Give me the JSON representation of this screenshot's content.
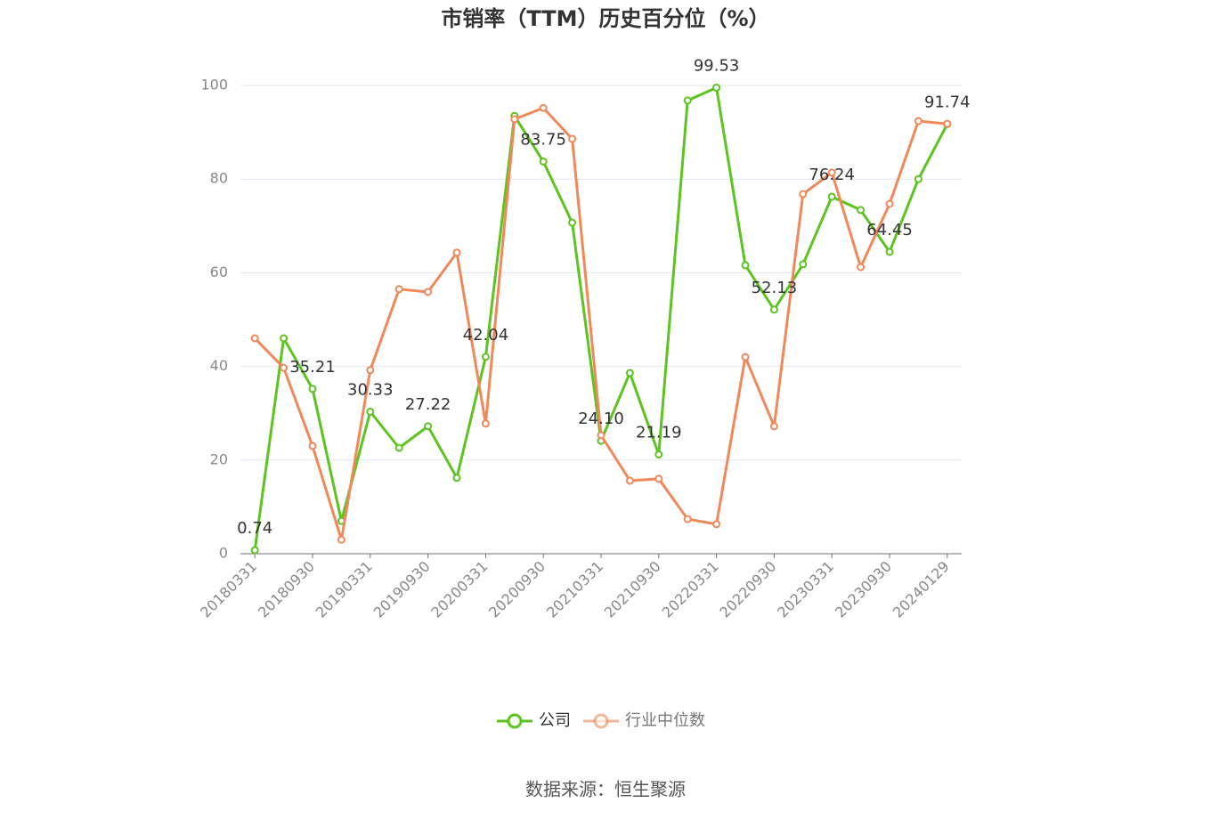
{
  "chart_data": {
    "type": "line",
    "title": "市销率（TTM）历史百分位（%）",
    "source": "数据来源：恒生聚源",
    "categories": [
      "20180331",
      null,
      "20180930",
      null,
      "20190331",
      null,
      "20190930",
      null,
      "20200331",
      null,
      "20200930",
      null,
      "20210331",
      null,
      "20210930",
      null,
      "20220331",
      null,
      "20220930",
      null,
      "20230331",
      null,
      "20230930",
      null,
      "20240129"
    ],
    "series": [
      {
        "name": "公司",
        "color": "#5cc31f",
        "values": [
          0.74,
          46.0,
          35.21,
          7.0,
          30.33,
          22.6,
          27.22,
          16.2,
          42.04,
          93.5,
          83.75,
          70.7,
          24.1,
          38.6,
          21.19,
          96.8,
          99.53,
          61.6,
          52.13,
          61.8,
          76.24,
          73.4,
          64.45,
          80.0,
          91.74
        ],
        "value_labels": [
          "0.74",
          null,
          "35.21",
          null,
          "30.33",
          null,
          "27.22",
          null,
          "42.04",
          null,
          "83.75",
          null,
          "24.10",
          null,
          "21.19",
          null,
          "99.53",
          null,
          "52.13",
          null,
          "76.24",
          null,
          "64.45",
          null,
          "91.74"
        ]
      },
      {
        "name": "行业中位数",
        "color": "#f0885a",
        "values": [
          46.0,
          39.7,
          23.0,
          3.0,
          39.2,
          56.5,
          55.9,
          64.3,
          27.8,
          92.8,
          95.2,
          88.6,
          25.3,
          15.6,
          16.0,
          7.4,
          6.3,
          42.0,
          27.2,
          76.8,
          81.4,
          61.2,
          74.7,
          92.4,
          91.8
        ]
      }
    ],
    "ylim": [
      0,
      100
    ],
    "yticks": [
      0,
      20,
      40,
      60,
      80,
      100
    ],
    "grid": true,
    "legend": "bottom"
  }
}
